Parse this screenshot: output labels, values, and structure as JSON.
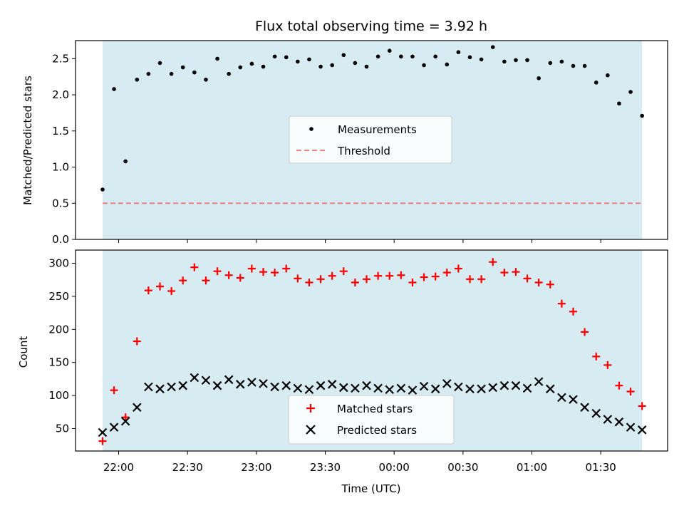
{
  "chart_data": [
    {
      "type": "scatter",
      "title": "Flux total observing time = 3.92 h",
      "xlabel": "",
      "ylabel": "Matched/Predicted stars",
      "ylim": [
        0,
        2.75
      ],
      "yticks": [
        "0.0",
        "0.5",
        "1.0",
        "1.5",
        "2.0",
        "2.5"
      ],
      "shaded_span": [
        "21:53",
        "01:48"
      ],
      "shade_color": "#add8e6",
      "legend_position": "center",
      "series": [
        {
          "name": "Measurements",
          "marker": "dot",
          "color": "#000000",
          "x": [
            "21:53",
            "21:58",
            "22:03",
            "22:08",
            "22:13",
            "22:18",
            "22:23",
            "22:28",
            "22:33",
            "22:38",
            "22:43",
            "22:48",
            "22:53",
            "22:58",
            "23:03",
            "23:08",
            "23:13",
            "23:18",
            "23:23",
            "23:28",
            "23:33",
            "23:38",
            "23:43",
            "23:48",
            "23:53",
            "23:58",
            "00:03",
            "00:08",
            "00:13",
            "00:18",
            "00:23",
            "00:28",
            "00:33",
            "00:38",
            "00:43",
            "00:48",
            "00:53",
            "00:58",
            "01:03",
            "01:08",
            "01:13",
            "01:18",
            "01:23",
            "01:28",
            "01:33",
            "01:38",
            "01:43",
            "01:48"
          ],
          "y": [
            0.69,
            2.08,
            1.08,
            2.21,
            2.29,
            2.44,
            2.29,
            2.38,
            2.31,
            2.21,
            2.5,
            2.29,
            2.38,
            2.43,
            2.39,
            2.53,
            2.52,
            2.46,
            2.49,
            2.39,
            2.41,
            2.55,
            2.44,
            2.39,
            2.53,
            2.61,
            2.53,
            2.53,
            2.41,
            2.53,
            2.42,
            2.59,
            2.52,
            2.49,
            2.66,
            2.46,
            2.48,
            2.48,
            2.23,
            2.44,
            2.46,
            2.4,
            2.4,
            2.17,
            2.27,
            1.88,
            2.04,
            1.71
          ]
        },
        {
          "name": "Threshold",
          "style": "dashed",
          "color": "#f08080",
          "x": [
            "21:53",
            "01:48"
          ],
          "y": [
            0.5,
            0.5
          ]
        }
      ]
    },
    {
      "type": "scatter",
      "title": "",
      "xlabel": "Time (UTC)",
      "ylabel": "Count",
      "ylim": [
        16,
        320
      ],
      "yticks": [
        "50",
        "100",
        "150",
        "200",
        "250",
        "300"
      ],
      "xticks": [
        "22:00",
        "22:30",
        "23:00",
        "23:30",
        "00:00",
        "00:30",
        "01:00",
        "01:30"
      ],
      "shaded_span": [
        "21:53",
        "01:48"
      ],
      "shade_color": "#add8e6",
      "legend_position": "lower center",
      "series": [
        {
          "name": "Matched stars",
          "marker": "plus",
          "color": "#ff0000",
          "x": [
            "21:53",
            "21:58",
            "22:03",
            "22:08",
            "22:13",
            "22:18",
            "22:23",
            "22:28",
            "22:33",
            "22:38",
            "22:43",
            "22:48",
            "22:53",
            "22:58",
            "23:03",
            "23:08",
            "23:13",
            "23:18",
            "23:23",
            "23:28",
            "23:33",
            "23:38",
            "23:43",
            "23:48",
            "23:53",
            "23:58",
            "00:03",
            "00:08",
            "00:13",
            "00:18",
            "00:23",
            "00:28",
            "00:33",
            "00:38",
            "00:43",
            "00:48",
            "00:53",
            "00:58",
            "01:03",
            "01:08",
            "01:13",
            "01:18",
            "01:23",
            "01:28",
            "01:33",
            "01:38",
            "01:43",
            "01:48"
          ],
          "y": [
            31,
            108,
            67,
            182,
            259,
            265,
            258,
            274,
            294,
            274,
            288,
            282,
            278,
            292,
            287,
            286,
            292,
            277,
            271,
            276,
            281,
            288,
            271,
            276,
            281,
            281,
            282,
            271,
            279,
            280,
            286,
            292,
            276,
            276,
            302,
            286,
            287,
            277,
            271,
            268,
            239,
            227,
            196,
            159,
            146,
            115,
            106,
            84
          ]
        },
        {
          "name": "Predicted stars",
          "marker": "x",
          "color": "#000000",
          "x": [
            "21:53",
            "21:58",
            "22:03",
            "22:08",
            "22:13",
            "22:18",
            "22:23",
            "22:28",
            "22:33",
            "22:38",
            "22:43",
            "22:48",
            "22:53",
            "22:58",
            "23:03",
            "23:08",
            "23:13",
            "23:18",
            "23:23",
            "23:28",
            "23:33",
            "23:38",
            "23:43",
            "23:48",
            "23:53",
            "23:58",
            "00:03",
            "00:08",
            "00:13",
            "00:18",
            "00:23",
            "00:28",
            "00:33",
            "00:38",
            "00:43",
            "00:48",
            "00:53",
            "00:58",
            "01:03",
            "01:08",
            "01:13",
            "01:18",
            "01:23",
            "01:28",
            "01:33",
            "01:38",
            "01:43",
            "01:48"
          ],
          "y": [
            44,
            52,
            61,
            82,
            113,
            110,
            113,
            115,
            127,
            123,
            115,
            124,
            117,
            120,
            118,
            113,
            115,
            111,
            109,
            115,
            117,
            112,
            111,
            115,
            111,
            109,
            111,
            108,
            114,
            110,
            118,
            113,
            110,
            110,
            112,
            115,
            115,
            111,
            121,
            110,
            97,
            94,
            82,
            73,
            64,
            60,
            52,
            48
          ]
        }
      ]
    }
  ]
}
